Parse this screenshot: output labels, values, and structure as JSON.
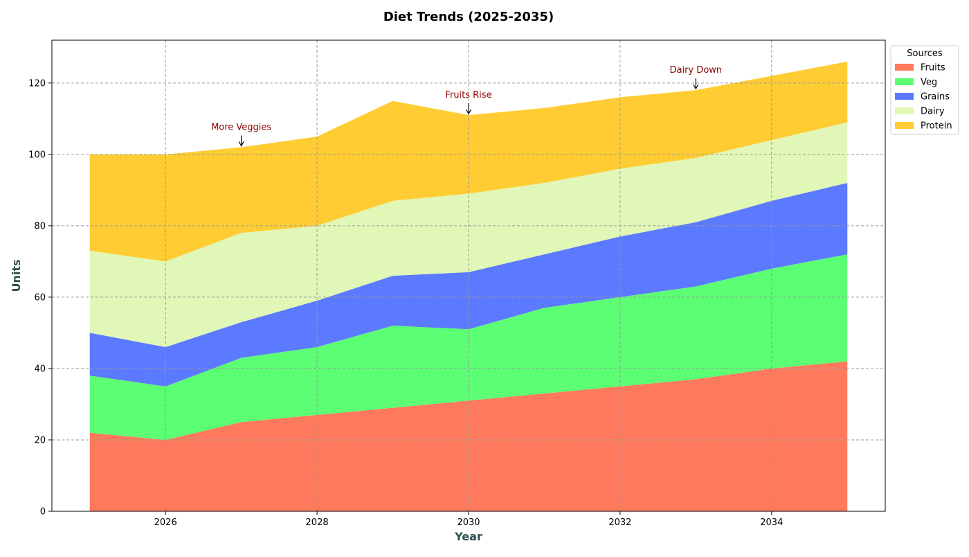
{
  "chart_data": {
    "type": "area",
    "stacked": true,
    "title": "Diet Trends (2025-2035)",
    "xlabel": "Year",
    "ylabel": "Units",
    "x": [
      2025,
      2026,
      2027,
      2028,
      2029,
      2030,
      2031,
      2032,
      2033,
      2034,
      2035
    ],
    "xlim": [
      2024.5,
      2035.5
    ],
    "ylim": [
      0,
      132
    ],
    "xticks": [
      "2026",
      "2028",
      "2030",
      "2032",
      "2034"
    ],
    "yticks": [
      "0",
      "20",
      "40",
      "60",
      "80",
      "100",
      "120"
    ],
    "grid": true,
    "legend": {
      "title": "Sources",
      "placement": "outside top-right"
    },
    "series": [
      {
        "name": "Fruits",
        "color": "#ff7a5c",
        "values": [
          22,
          20,
          25,
          27,
          29,
          31,
          33,
          35,
          37,
          40,
          42
        ]
      },
      {
        "name": "Veg",
        "color": "#5cff74",
        "values": [
          16,
          15,
          18,
          19,
          23,
          20,
          24,
          25,
          26,
          28,
          30
        ]
      },
      {
        "name": "Grains",
        "color": "#5c7aff",
        "values": [
          12,
          11,
          10,
          13,
          14,
          16,
          15,
          17,
          18,
          19,
          20
        ]
      },
      {
        "name": "Dairy",
        "color": "#e0f7b7",
        "values": [
          23,
          24,
          25,
          21,
          21,
          22,
          20,
          19,
          18,
          17,
          17
        ]
      },
      {
        "name": "Protein",
        "color": "#ffcd33",
        "values": [
          27,
          30,
          24,
          25,
          28,
          22,
          21,
          20,
          19,
          18,
          17
        ]
      }
    ],
    "annotations": [
      {
        "text": "More Veggies",
        "x": 2027,
        "y": 102
      },
      {
        "text": "Fruits Rise",
        "x": 2030,
        "y": 111
      },
      {
        "text": "Dairy Down",
        "x": 2033,
        "y": 118
      }
    ]
  }
}
